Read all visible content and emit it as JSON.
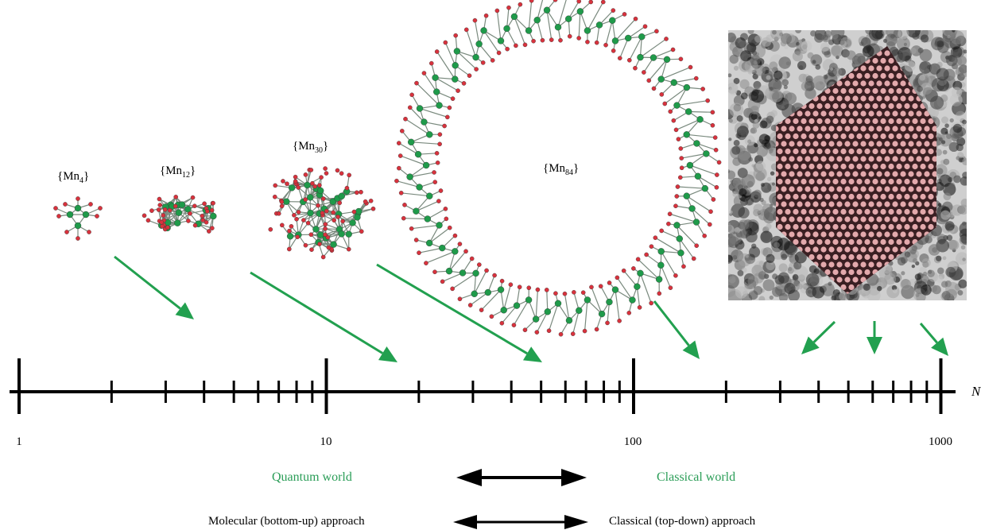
{
  "clusters": [
    {
      "name": "{Mn4}",
      "base": "{Mn",
      "sub": "4",
      "close": "}"
    },
    {
      "name": "{Mn12}",
      "base": "{Mn",
      "sub": "12",
      "close": "}"
    },
    {
      "name": "{Mn30}",
      "base": "{Mn",
      "sub": "30",
      "close": "}"
    },
    {
      "name": "{Mn84}",
      "base": "{Mn",
      "sub": "84",
      "close": "}"
    }
  ],
  "axis": {
    "variable": "N",
    "scale": "log",
    "range": [
      1,
      1000
    ],
    "major_labels": [
      "1",
      "10",
      "100",
      "1000"
    ]
  },
  "regions": {
    "quantum": "Quantum world",
    "classical": "Classical world"
  },
  "approaches": {
    "molecular": "Molecular (bottom-up) approach",
    "classical": "Classical (top-down) approach"
  },
  "colors": {
    "metal_atom": "#1f9a4a",
    "oxygen_atom": "#d8323d",
    "arrow_green": "#22a04f",
    "label_green": "#2a9d57",
    "nanoparticle_overlay": "#f2b5b8"
  }
}
